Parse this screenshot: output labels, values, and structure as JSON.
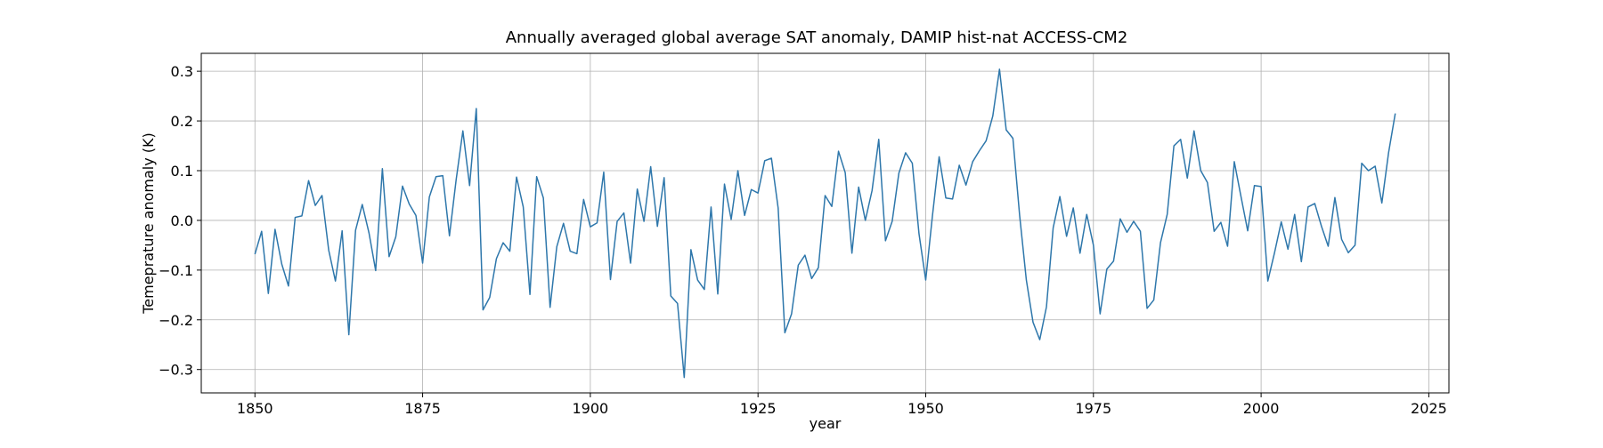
{
  "chart_data": {
    "type": "line",
    "title": "Annually averaged global average SAT anomaly, DAMIP hist-nat ACCESS-CM2",
    "xlabel": "year",
    "ylabel": "Temeprature anomaly (K)",
    "xlim": [
      1842,
      2028
    ],
    "ylim": [
      -0.347,
      0.336
    ],
    "xticks": [
      1850,
      1875,
      1900,
      1925,
      1950,
      1975,
      2000,
      2025
    ],
    "yticks": [
      -0.3,
      -0.2,
      -0.1,
      0.0,
      0.1,
      0.2,
      0.3
    ],
    "ytick_labels": [
      "−0.3",
      "−0.2",
      "−0.1",
      "0.0",
      "0.1",
      "0.2",
      "0.3"
    ],
    "grid": true,
    "line_color": "#2e77ab",
    "x_start": 1850,
    "y": [
      -0.068,
      -0.022,
      -0.147,
      -0.018,
      -0.088,
      -0.132,
      0.006,
      0.009,
      0.08,
      0.03,
      0.05,
      -0.06,
      -0.122,
      -0.021,
      -0.23,
      -0.02,
      0.032,
      -0.025,
      -0.101,
      0.104,
      -0.073,
      -0.033,
      0.069,
      0.033,
      0.01,
      -0.086,
      0.047,
      0.088,
      0.09,
      -0.031,
      0.082,
      0.18,
      0.07,
      0.225,
      -0.18,
      -0.155,
      -0.077,
      -0.045,
      -0.062,
      0.087,
      0.027,
      -0.149,
      0.088,
      0.045,
      -0.175,
      -0.053,
      -0.006,
      -0.062,
      -0.067,
      0.042,
      -0.013,
      -0.005,
      0.097,
      -0.119,
      -0.002,
      0.015,
      -0.086,
      0.063,
      -0.002,
      0.108,
      -0.012,
      0.086,
      -0.152,
      -0.167,
      -0.316,
      -0.059,
      -0.12,
      -0.139,
      0.027,
      -0.148,
      0.073,
      0.002,
      0.1,
      0.01,
      0.062,
      0.055,
      0.12,
      0.125,
      0.025,
      -0.226,
      -0.188,
      -0.09,
      -0.07,
      -0.117,
      -0.095,
      0.05,
      0.028,
      0.139,
      0.096,
      -0.066,
      0.067,
      0.0,
      0.06,
      0.163,
      -0.041,
      -0.002,
      0.095,
      0.136,
      0.115,
      -0.027,
      -0.12,
      0.009,
      0.128,
      0.045,
      0.043,
      0.111,
      0.071,
      0.118,
      0.14,
      0.16,
      0.21,
      0.304,
      0.182,
      0.165,
      0.01,
      -0.12,
      -0.205,
      -0.24,
      -0.174,
      -0.015,
      0.048,
      -0.032,
      0.025,
      -0.066,
      0.012,
      -0.05,
      -0.188,
      -0.098,
      -0.082,
      0.003,
      -0.024,
      -0.002,
      -0.022,
      -0.177,
      -0.16,
      -0.045,
      0.012,
      0.15,
      0.163,
      0.085,
      0.18,
      0.1,
      0.076,
      -0.022,
      -0.004,
      -0.052,
      0.118,
      0.048,
      -0.021,
      0.07,
      0.068,
      -0.122,
      -0.065,
      -0.003,
      -0.058,
      0.012,
      -0.083,
      0.027,
      0.034,
      -0.012,
      -0.052,
      0.046,
      -0.038,
      -0.065,
      -0.05,
      0.115,
      0.1,
      0.109,
      0.035,
      0.136,
      0.215
    ]
  }
}
